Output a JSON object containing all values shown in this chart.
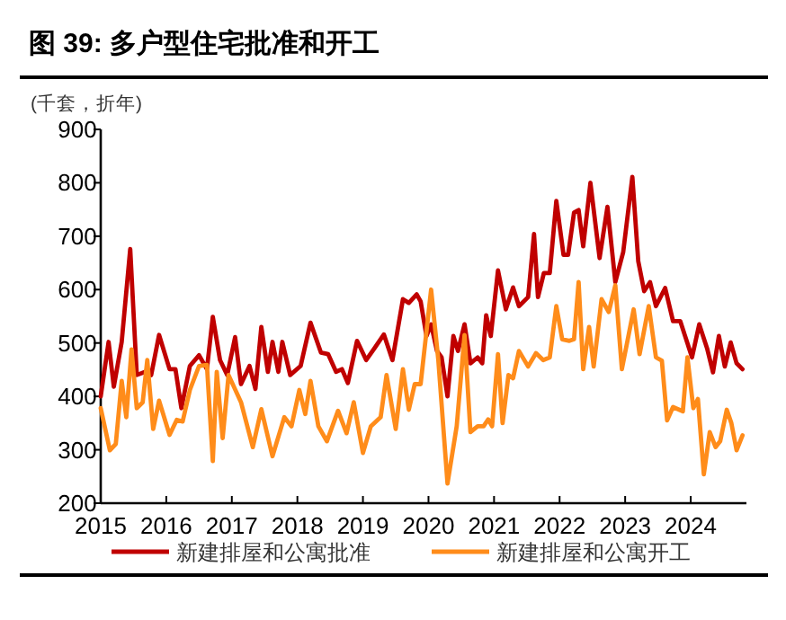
{
  "chart_data": {
    "type": "line",
    "title": "图 39: 多户型住宅批准和开工",
    "ylabel": "(千套，折年)",
    "xlim": [
      2015,
      2024.85
    ],
    "xticks": [
      {
        "value": 2015,
        "label": "2015"
      },
      {
        "value": 2016,
        "label": "2016"
      },
      {
        "value": 2017,
        "label": "2017"
      },
      {
        "value": 2018,
        "label": "2018"
      },
      {
        "value": 2019,
        "label": "2019"
      },
      {
        "value": 2020,
        "label": "2020"
      },
      {
        "value": 2021,
        "label": "2021"
      },
      {
        "value": 2022,
        "label": "2022"
      },
      {
        "value": 2023,
        "label": "2023"
      },
      {
        "value": 2024,
        "label": "2024"
      }
    ],
    "ylim": [
      200,
      900
    ],
    "yticks": [
      200,
      300,
      400,
      500,
      600,
      700,
      800,
      900
    ],
    "grid": false,
    "legend": "bottom",
    "marker": "none",
    "line_style": "solid",
    "series": [
      {
        "name": "新建排屋和公寓批准",
        "color": "#c00000",
        "x": [
          2015,
          2015.12,
          2015.2,
          2015.32,
          2015.45,
          2015.55,
          2015.68,
          2015.77,
          2015.89,
          2016.05,
          2016.14,
          2016.23,
          2016.36,
          2016.5,
          2016.62,
          2016.71,
          2016.82,
          2016.93,
          2017.05,
          2017.14,
          2017.27,
          2017.36,
          2017.45,
          2017.55,
          2017.62,
          2017.71,
          2017.77,
          2017.89,
          2018.05,
          2018.2,
          2018.36,
          2018.47,
          2018.59,
          2018.68,
          2018.77,
          2018.91,
          2019.05,
          2019.18,
          2019.32,
          2019.45,
          2019.61,
          2019.7,
          2019.82,
          2019.88,
          2019.97,
          2020.04,
          2020.13,
          2020.2,
          2020.29,
          2020.38,
          2020.45,
          2020.55,
          2020.64,
          2020.75,
          2020.82,
          2020.88,
          2020.95,
          2021.06,
          2021.18,
          2021.29,
          2021.38,
          2021.52,
          2021.61,
          2021.67,
          2021.76,
          2021.85,
          2021.95,
          2022.06,
          2022.13,
          2022.22,
          2022.29,
          2022.36,
          2022.47,
          2022.61,
          2022.73,
          2022.85,
          2022.97,
          2023.11,
          2023.2,
          2023.29,
          2023.38,
          2023.47,
          2023.61,
          2023.73,
          2023.84,
          2023.93,
          2024.02,
          2024.13,
          2024.25,
          2024.34,
          2024.43,
          2024.52,
          2024.61,
          2024.7,
          2024.79
        ],
        "values": [
          400,
          502,
          418,
          502,
          676,
          440,
          446,
          440,
          515,
          451,
          451,
          378,
          457,
          477,
          451,
          549,
          468,
          440,
          511,
          423,
          457,
          414,
          530,
          446,
          502,
          446,
          502,
          440,
          457,
          538,
          482,
          479,
          446,
          451,
          425,
          504,
          468,
          491,
          516,
          468,
          582,
          575,
          591,
          578,
          513,
          535,
          485,
          473,
          400,
          513,
          485,
          535,
          462,
          473,
          462,
          552,
          513,
          636,
          563,
          604,
          569,
          586,
          704,
          586,
          631,
          631,
          766,
          665,
          665,
          744,
          749,
          681,
          800,
          659,
          755,
          614,
          670,
          811,
          653,
          597,
          614,
          569,
          603,
          541,
          541,
          507,
          473,
          535,
          490,
          445,
          513,
          456,
          501,
          462,
          451
        ]
      },
      {
        "name": "新建排屋和公寓开工",
        "color": "#ff8c1a",
        "x": [
          2015,
          2015.14,
          2015.23,
          2015.32,
          2015.39,
          2015.47,
          2015.55,
          2015.64,
          2015.71,
          2015.8,
          2015.89,
          2016.05,
          2016.16,
          2016.25,
          2016.36,
          2016.5,
          2016.62,
          2016.71,
          2016.77,
          2016.86,
          2016.95,
          2017.14,
          2017.32,
          2017.45,
          2017.62,
          2017.8,
          2017.91,
          2018.03,
          2018.12,
          2018.2,
          2018.32,
          2018.45,
          2018.62,
          2018.75,
          2018.86,
          2019.0,
          2019.12,
          2019.27,
          2019.36,
          2019.5,
          2019.61,
          2019.7,
          2019.79,
          2019.88,
          2020.04,
          2020.15,
          2020.29,
          2020.43,
          2020.55,
          2020.64,
          2020.75,
          2020.84,
          2020.91,
          2020.97,
          2021.06,
          2021.13,
          2021.22,
          2021.29,
          2021.38,
          2021.52,
          2021.64,
          2021.75,
          2021.85,
          2021.95,
          2022.04,
          2022.15,
          2022.22,
          2022.29,
          2022.36,
          2022.45,
          2022.52,
          2022.64,
          2022.75,
          2022.85,
          2022.95,
          2023.13,
          2023.22,
          2023.36,
          2023.47,
          2023.56,
          2023.64,
          2023.73,
          2023.88,
          2023.95,
          2024.04,
          2024.11,
          2024.2,
          2024.29,
          2024.38,
          2024.45,
          2024.55,
          2024.62,
          2024.7,
          2024.79
        ],
        "values": [
          378,
          299,
          311,
          429,
          361,
          488,
          378,
          389,
          468,
          339,
          392,
          328,
          356,
          353,
          412,
          457,
          459,
          279,
          446,
          322,
          440,
          389,
          305,
          376,
          288,
          361,
          344,
          412,
          367,
          429,
          344,
          316,
          373,
          331,
          389,
          294,
          344,
          361,
          440,
          339,
          451,
          375,
          423,
          423,
          600,
          468,
          237,
          344,
          515,
          333,
          344,
          344,
          357,
          344,
          479,
          350,
          440,
          434,
          485,
          456,
          481,
          468,
          473,
          569,
          507,
          504,
          507,
          614,
          451,
          530,
          456,
          582,
          558,
          608,
          451,
          563,
          479,
          569,
          473,
          467,
          355,
          380,
          372,
          473,
          378,
          395,
          254,
          333,
          305,
          316,
          375,
          350,
          299,
          327
        ]
      }
    ]
  }
}
